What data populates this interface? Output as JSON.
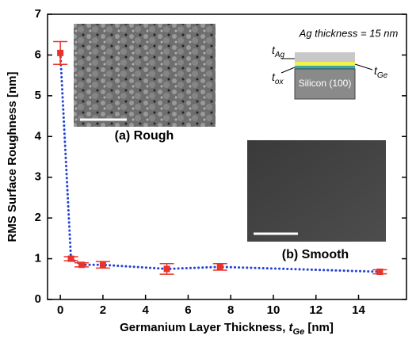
{
  "chart_data": {
    "type": "line",
    "x_label": {
      "text": "Germanium Layer Thickness, ",
      "var": "t",
      "sub": "Ge",
      "unit": " [nm]"
    },
    "y_label": "RMS Surface Roughness [nm]",
    "x": [
      0,
      0.5,
      1,
      2,
      5,
      7.5,
      15
    ],
    "series": [
      {
        "color": "#2442d6",
        "marker_color": "#e8332a",
        "values": [
          6.05,
          1.0,
          0.85,
          0.85,
          0.75,
          0.8,
          0.68
        ],
        "errors": [
          0.28,
          0.05,
          0.05,
          0.08,
          0.13,
          0.08,
          0.05
        ]
      }
    ],
    "xlim": [
      -0.6,
      16.25
    ],
    "ylim": [
      0,
      7
    ],
    "xticks": [
      0,
      2,
      4,
      6,
      8,
      10,
      12,
      14
    ],
    "yticks": [
      0,
      1,
      2,
      3,
      4,
      5,
      6,
      7
    ],
    "annotations": {
      "inset_a": "(a) Rough",
      "inset_b": "(b) Smooth",
      "ag_thickness": "Ag thickness = 15 nm",
      "substrate": "Silicon (100)",
      "t_ag": {
        "var": "t",
        "sub": "Ag"
      },
      "t_ox": {
        "var": "t",
        "sub": "ox"
      },
      "t_ge": {
        "var": "t",
        "sub": "Ge"
      }
    }
  }
}
